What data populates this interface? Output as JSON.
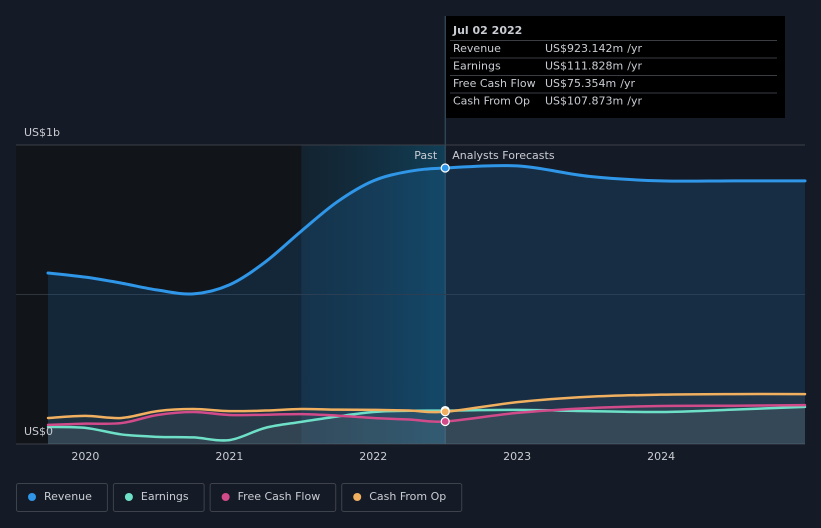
{
  "chart_data": {
    "type": "line",
    "x": [
      2019.74,
      2020.0,
      2020.25,
      2020.5,
      2020.75,
      2021.0,
      2021.25,
      2021.5,
      2021.75,
      2022.0,
      2022.25,
      2022.5,
      2023.0,
      2023.5,
      2024.0,
      2024.5,
      2025.0
    ],
    "xlim": [
      2019.74,
      2025.0
    ],
    "xticks": [
      2020,
      2021,
      2022,
      2023,
      2024
    ],
    "ylim": [
      0,
      1000
    ],
    "yticks": [
      {
        "value": 0,
        "label": "US$0"
      },
      {
        "value": 1000,
        "label": "US$1b"
      }
    ],
    "grid": true,
    "series": [
      {
        "name": "Revenue",
        "color": "#2f96e8",
        "values": [
          572,
          558,
          538,
          515,
          502,
          532,
          609,
          712,
          810,
          880,
          912,
          923.142,
          930,
          895,
          880,
          880,
          880
        ],
        "tooltip_value": "US$923.142m"
      },
      {
        "name": "Earnings",
        "color": "#6fe0c8",
        "values": [
          57,
          54,
          32,
          24,
          22,
          13,
          54,
          74,
          92,
          107,
          111,
          111.828,
          114,
          110,
          107,
          115,
          124
        ],
        "tooltip_value": "US$111.828m"
      },
      {
        "name": "Free Cash Flow",
        "color": "#d14b8a",
        "values": [
          64,
          68,
          70,
          97,
          107,
          97,
          98,
          100,
          95,
          87,
          82,
          75.354,
          104,
          120,
          127,
          128,
          130
        ],
        "tooltip_value": "US$75.354m"
      },
      {
        "name": "Cash From Op",
        "color": "#f0b060",
        "values": [
          87,
          94,
          87,
          110,
          117,
          110,
          112,
          117,
          115,
          114,
          112,
          107.873,
          140,
          158,
          165,
          167,
          167
        ],
        "tooltip_value": "US$107.873m"
      }
    ],
    "past_label": "Past",
    "forecast_label": "Analysts Forecasts",
    "highlight_start": 2021.5,
    "divider_x": 2022.5,
    "tooltip": {
      "date": "Jul 02 2022",
      "index": 11,
      "unit": "/yr"
    }
  }
}
